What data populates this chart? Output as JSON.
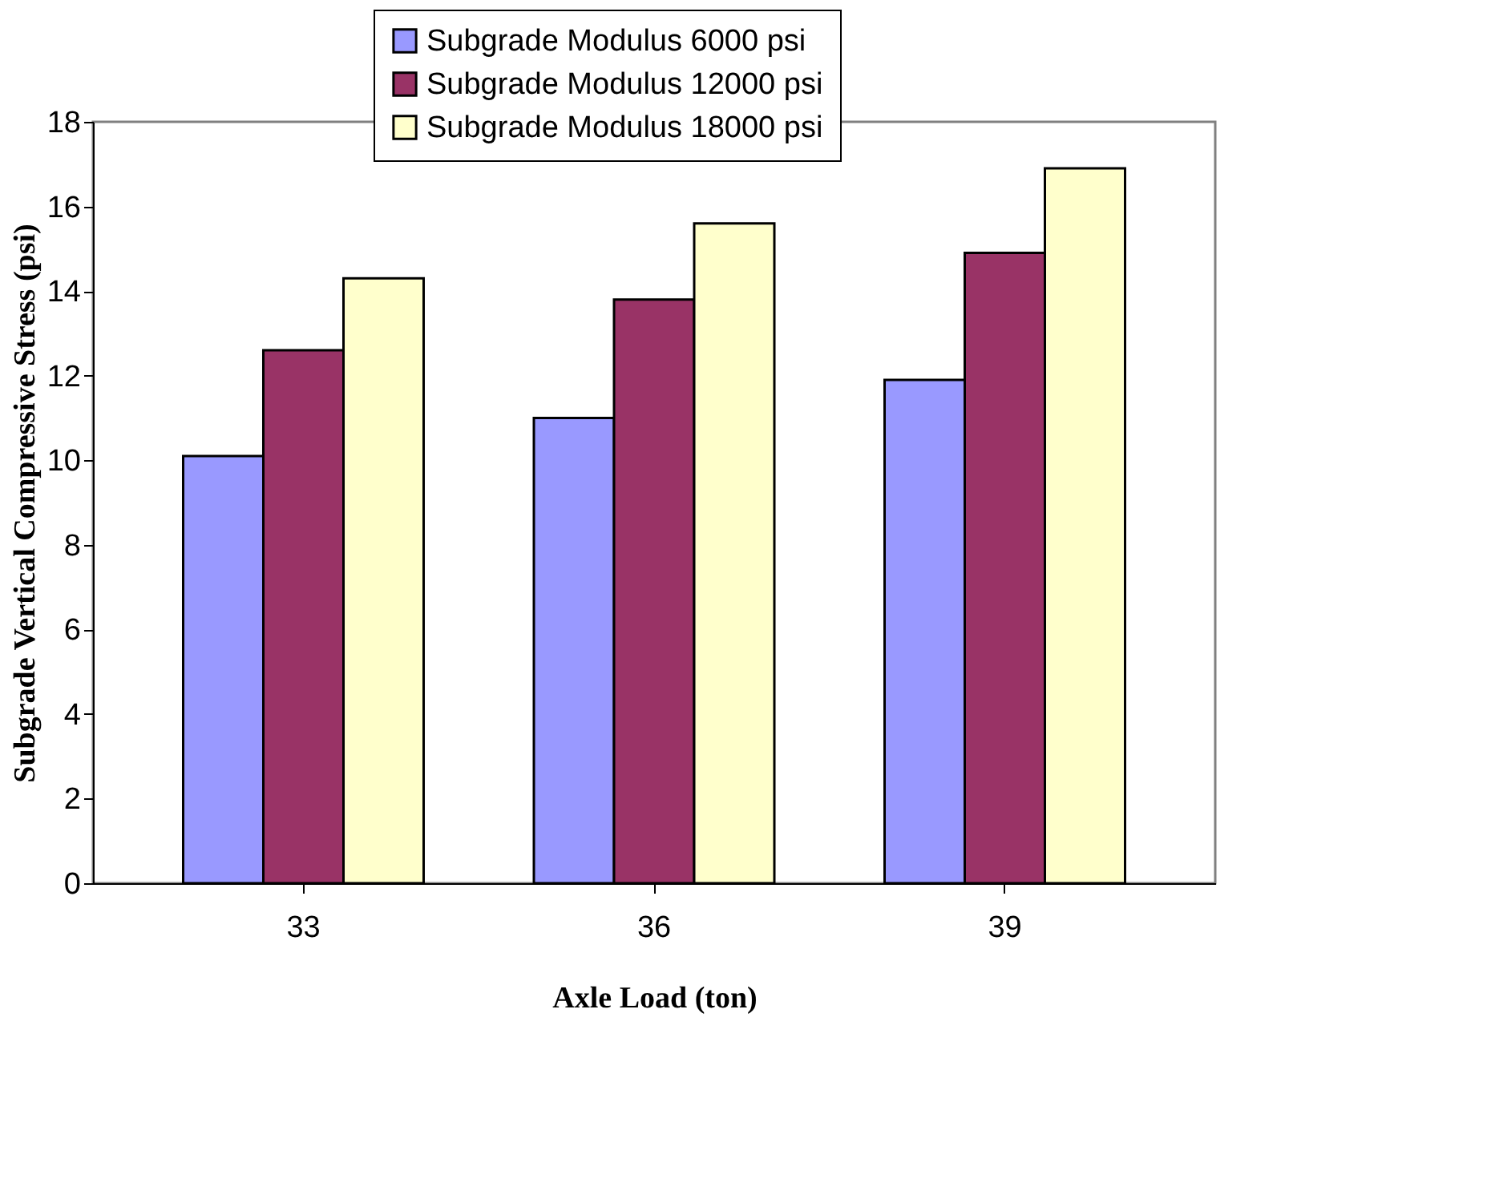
{
  "chart_data": {
    "type": "bar",
    "xlabel": "Axle Load (ton)",
    "ylabel": "Subgrade Vertical Compressive Stress (psi)",
    "categories": [
      "33",
      "36",
      "39"
    ],
    "series": [
      {
        "name": "Subgrade Modulus   6000 psi",
        "color": "#9999ff",
        "values": [
          10.1,
          11.0,
          11.9
        ]
      },
      {
        "name": "Subgrade Modulus 12000 psi",
        "color": "#993366",
        "values": [
          12.6,
          13.8,
          14.9
        ]
      },
      {
        "name": "Subgrade Modulus 18000 psi",
        "color": "#ffffcc",
        "values": [
          14.3,
          15.6,
          16.9
        ]
      }
    ],
    "ylim": [
      0,
      18
    ],
    "yticks": [
      0,
      2,
      4,
      6,
      8,
      10,
      12,
      14,
      16,
      18
    ],
    "legend": "top",
    "grid": false
  }
}
